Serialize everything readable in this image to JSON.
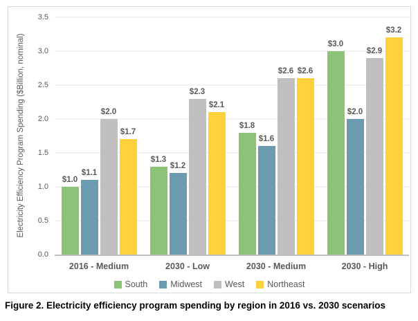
{
  "figure": {
    "caption": "Figure 2. Electricity efficiency program spending by region in 2016 vs. 2030 scenarios"
  },
  "chart_data": {
    "type": "bar",
    "title": "",
    "xlabel": "",
    "ylabel": "Electricity Efficiency Program Spending ($Billion, nominal)",
    "ylim": [
      0,
      3.5
    ],
    "yticks": [
      0,
      0.5,
      1,
      1.5,
      2,
      2.5,
      3,
      3.5
    ],
    "ytick_labels": [
      "0.0",
      "0.5",
      "1.0",
      "1.5",
      "2.0",
      "2.5",
      "3.0",
      "3.5"
    ],
    "grid": "horizontal",
    "legend_position": "bottom",
    "categories": [
      "2016 - Medium",
      "2030 - Low",
      "2030 - Medium",
      "2030 - High"
    ],
    "series": [
      {
        "name": "South",
        "color": "#8DC377",
        "values": [
          1.0,
          1.3,
          1.8,
          3.0
        ],
        "labels": [
          "$1.0",
          "$1.3",
          "$1.8",
          "$3.0"
        ]
      },
      {
        "name": "Midwest",
        "color": "#6B9AB1",
        "values": [
          1.1,
          1.2,
          1.6,
          2.0
        ],
        "labels": [
          "$1.1",
          "$1.2",
          "$1.6",
          "$2.0"
        ]
      },
      {
        "name": "West",
        "color": "#BFBFBF",
        "values": [
          2.0,
          2.3,
          2.6,
          2.9
        ],
        "labels": [
          "$2.0",
          "$2.3",
          "$2.6",
          "$2.9"
        ]
      },
      {
        "name": "Northeast",
        "color": "#FFD13C",
        "values": [
          1.7,
          2.1,
          2.6,
          3.2
        ],
        "labels": [
          "$1.7",
          "$2.1",
          "$2.6",
          "$3.2"
        ]
      }
    ],
    "colors": {
      "gridline": "#E6E6E6",
      "axis_line": "#BFBFBF",
      "text": "#595959",
      "frame_border": "#D9D9D9"
    }
  }
}
